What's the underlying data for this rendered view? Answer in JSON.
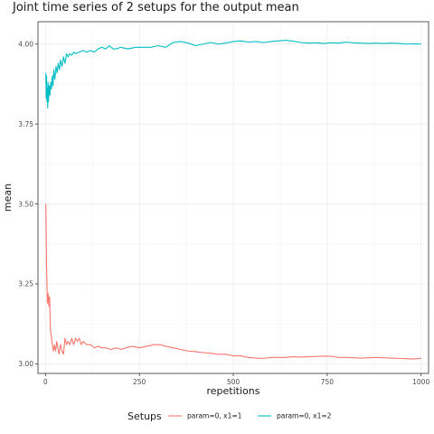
{
  "chart_data": {
    "type": "line",
    "title": "Joint time series of 2 setups for the output mean",
    "xlabel": "repetitions",
    "ylabel": "mean",
    "xlim": [
      -20,
      1020
    ],
    "ylim": [
      2.97,
      4.07
    ],
    "x_ticks": [
      0,
      250,
      500,
      750,
      1000
    ],
    "x_tick_labels": [
      "0",
      "250",
      "500",
      "750",
      "1000"
    ],
    "y_ticks": [
      3.0,
      3.25,
      3.5,
      3.75,
      4.0
    ],
    "y_tick_labels": [
      "3.00",
      "3.25",
      "3.50",
      "3.75",
      "4.00"
    ],
    "grid": true,
    "legend": {
      "title": "Setups",
      "position": "bottom"
    },
    "series": [
      {
        "name": "param=0, x1=1",
        "color": "#F8766D",
        "points": [
          [
            1,
            3.5
          ],
          [
            3,
            3.3
          ],
          [
            5,
            3.19
          ],
          [
            7,
            3.22
          ],
          [
            9,
            3.18
          ],
          [
            11,
            3.21
          ],
          [
            13,
            3.11
          ],
          [
            15,
            3.09
          ],
          [
            18,
            3.06
          ],
          [
            21,
            3.04
          ],
          [
            24,
            3.06
          ],
          [
            27,
            3.04
          ],
          [
            30,
            3.07
          ],
          [
            33,
            3.05
          ],
          [
            36,
            3.03
          ],
          [
            40,
            3.06
          ],
          [
            44,
            3.04
          ],
          [
            48,
            3.03
          ],
          [
            52,
            3.08
          ],
          [
            56,
            3.06
          ],
          [
            60,
            3.07
          ],
          [
            65,
            3.06
          ],
          [
            70,
            3.08
          ],
          [
            75,
            3.06
          ],
          [
            80,
            3.08
          ],
          [
            85,
            3.07
          ],
          [
            90,
            3.08
          ],
          [
            95,
            3.06
          ],
          [
            100,
            3.07
          ],
          [
            110,
            3.06
          ],
          [
            120,
            3.06
          ],
          [
            130,
            3.05
          ],
          [
            140,
            3.055
          ],
          [
            150,
            3.05
          ],
          [
            160,
            3.05
          ],
          [
            175,
            3.045
          ],
          [
            190,
            3.05
          ],
          [
            200,
            3.045
          ],
          [
            215,
            3.05
          ],
          [
            230,
            3.055
          ],
          [
            250,
            3.05
          ],
          [
            270,
            3.055
          ],
          [
            290,
            3.06
          ],
          [
            305,
            3.06
          ],
          [
            320,
            3.055
          ],
          [
            340,
            3.05
          ],
          [
            360,
            3.045
          ],
          [
            380,
            3.04
          ],
          [
            400,
            3.038
          ],
          [
            420,
            3.035
          ],
          [
            440,
            3.033
          ],
          [
            460,
            3.03
          ],
          [
            480,
            3.03
          ],
          [
            500,
            3.025
          ],
          [
            520,
            3.025
          ],
          [
            540,
            3.02
          ],
          [
            560,
            3.018
          ],
          [
            580,
            3.017
          ],
          [
            600,
            3.02
          ],
          [
            620,
            3.02
          ],
          [
            640,
            3.02
          ],
          [
            660,
            3.022
          ],
          [
            680,
            3.021
          ],
          [
            700,
            3.022
          ],
          [
            720,
            3.023
          ],
          [
            740,
            3.024
          ],
          [
            760,
            3.024
          ],
          [
            780,
            3.02
          ],
          [
            800,
            3.02
          ],
          [
            820,
            3.019
          ],
          [
            840,
            3.018
          ],
          [
            860,
            3.019
          ],
          [
            880,
            3.02
          ],
          [
            900,
            3.019
          ],
          [
            920,
            3.018
          ],
          [
            940,
            3.017
          ],
          [
            960,
            3.016
          ],
          [
            980,
            3.015
          ],
          [
            1000,
            3.017
          ]
        ]
      },
      {
        "name": "param=0, x1=2",
        "color": "#00BFC4",
        "points": [
          [
            1,
            3.91
          ],
          [
            2,
            3.83
          ],
          [
            3,
            3.9
          ],
          [
            4,
            3.82
          ],
          [
            5,
            3.86
          ],
          [
            6,
            3.8
          ],
          [
            7,
            3.88
          ],
          [
            8,
            3.82
          ],
          [
            10,
            3.87
          ],
          [
            12,
            3.84
          ],
          [
            14,
            3.88
          ],
          [
            16,
            3.86
          ],
          [
            18,
            3.9
          ],
          [
            20,
            3.87
          ],
          [
            22,
            3.92
          ],
          [
            25,
            3.89
          ],
          [
            28,
            3.93
          ],
          [
            31,
            3.91
          ],
          [
            34,
            3.94
          ],
          [
            37,
            3.92
          ],
          [
            40,
            3.95
          ],
          [
            44,
            3.93
          ],
          [
            48,
            3.96
          ],
          [
            52,
            3.94
          ],
          [
            56,
            3.97
          ],
          [
            60,
            3.96
          ],
          [
            65,
            3.97
          ],
          [
            70,
            3.965
          ],
          [
            75,
            3.975
          ],
          [
            80,
            3.97
          ],
          [
            90,
            3.975
          ],
          [
            100,
            3.98
          ],
          [
            110,
            3.975
          ],
          [
            120,
            3.98
          ],
          [
            130,
            3.975
          ],
          [
            140,
            3.985
          ],
          [
            150,
            3.99
          ],
          [
            160,
            3.985
          ],
          [
            170,
            3.995
          ],
          [
            180,
            3.985
          ],
          [
            190,
            3.985
          ],
          [
            200,
            3.99
          ],
          [
            220,
            3.985
          ],
          [
            240,
            3.99
          ],
          [
            260,
            3.99
          ],
          [
            280,
            3.99
          ],
          [
            300,
            3.995
          ],
          [
            320,
            3.99
          ],
          [
            340,
            4.005
          ],
          [
            360,
            4.008
          ],
          [
            380,
            4.003
          ],
          [
            400,
            3.995
          ],
          [
            420,
            4.0
          ],
          [
            440,
            4.005
          ],
          [
            460,
            4.0
          ],
          [
            480,
            4.003
          ],
          [
            500,
            4.008
          ],
          [
            520,
            4.01
          ],
          [
            540,
            4.006
          ],
          [
            560,
            4.008
          ],
          [
            580,
            4.005
          ],
          [
            600,
            4.008
          ],
          [
            620,
            4.01
          ],
          [
            640,
            4.012
          ],
          [
            660,
            4.009
          ],
          [
            680,
            4.005
          ],
          [
            700,
            4.003
          ],
          [
            720,
            4.004
          ],
          [
            740,
            4.002
          ],
          [
            760,
            4.004
          ],
          [
            780,
            4.003
          ],
          [
            800,
            4.006
          ],
          [
            820,
            4.004
          ],
          [
            840,
            4.003
          ],
          [
            860,
            4.002
          ],
          [
            880,
            4.003
          ],
          [
            900,
            4.002
          ],
          [
            920,
            4.003
          ],
          [
            940,
            4.002
          ],
          [
            960,
            4.0
          ],
          [
            980,
            4.001
          ],
          [
            1000,
            4.0
          ]
        ]
      }
    ]
  }
}
